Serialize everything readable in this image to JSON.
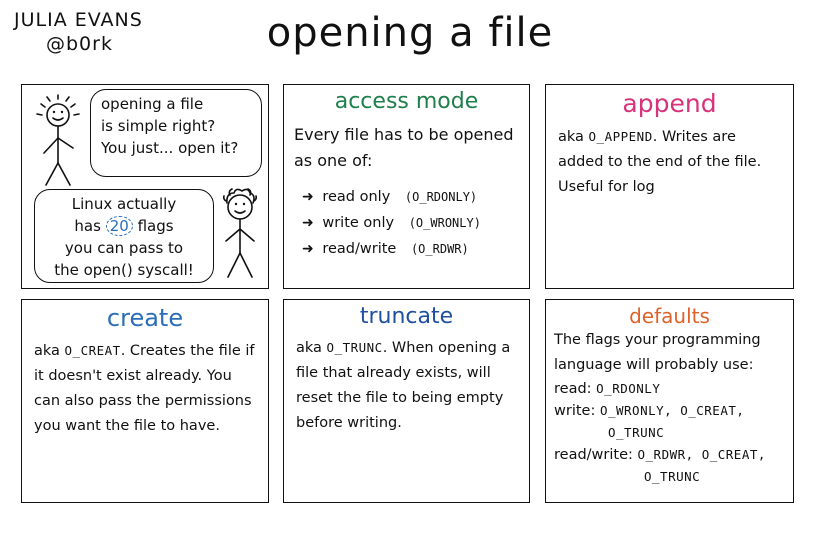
{
  "author": {
    "name": "JULIA EVANS",
    "handle": "@b0rk"
  },
  "title": "opening a file",
  "colors": {
    "access_mode": "#1e7f4a",
    "append": "#d6337a",
    "create": "#2a6db8",
    "truncate": "#1f4f9e",
    "defaults": "#e0622a"
  },
  "intro": {
    "bubble1": [
      "opening a file",
      "is simple right?",
      "You just... open it?"
    ],
    "bubble2": [
      "Linux actually",
      "has",
      "20",
      "flags",
      "you can pass to",
      "the open() syscall!"
    ]
  },
  "access_mode": {
    "title": "access mode",
    "intro": "Every file has to be opened as one of:",
    "items": [
      {
        "label": "read only",
        "flag": "(O_RDONLY)"
      },
      {
        "label": "write only",
        "flag": "(O_WRONLY)"
      },
      {
        "label": "read/write",
        "flag": "(O_RDWR)"
      }
    ]
  },
  "append": {
    "title": "append",
    "aka": "aka",
    "flag": "O_APPEND",
    "text": ". Writes are added to the end of the file. Useful for log"
  },
  "create": {
    "title": "create",
    "aka": "aka",
    "flag": "O_CREAT",
    "text": ". Creates the file if it doesn't exist already. You can also pass the permissions you want the file to have."
  },
  "truncate": {
    "title": "truncate",
    "aka": "aka",
    "flag": "O_TRUNC",
    "text": ". When opening a file that already exists, will reset the file to being empty before writing."
  },
  "defaults": {
    "title": "defaults",
    "intro": "The flags your programming language will probably use:",
    "read_label": "read:",
    "read_flags": "O_RDONLY",
    "write_label": "write:",
    "write_flags": "O_WRONLY, O_CREAT,",
    "write_flags2": "O_TRUNC",
    "rw_label": "read/write:",
    "rw_flags": "O_RDWR, O_CREAT,",
    "rw_flags2": "O_TRUNC"
  }
}
